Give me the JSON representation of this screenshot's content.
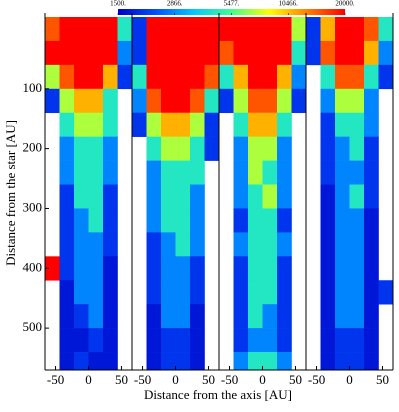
{
  "chart_data": {
    "type": "heatmap",
    "xlabel": "Distance from the axis [AU]",
    "ylabel": "Distance from the star [AU]",
    "xlim": [
      -66,
      66
    ],
    "xticks": [
      -50,
      0,
      50
    ],
    "ylim": [
      570,
      -20
    ],
    "yticks": [
      100,
      200,
      300,
      400,
      500
    ],
    "xbins": [
      -66,
      -44,
      -22,
      0,
      22,
      44,
      66
    ],
    "ybins": [
      -20,
      20,
      60,
      100,
      140,
      180,
      220,
      260,
      300,
      340,
      380,
      420,
      460,
      500,
      540,
      570
    ],
    "colorbar": {
      "scale": "log",
      "clim": [
        1500,
        20000
      ],
      "colormap": [
        "#0000c8",
        "#0050ff",
        "#00c8ff",
        "#40ff90",
        "#ffff00",
        "#ff8000",
        "#ff0000"
      ],
      "ticks": [
        {
          "value": 1500,
          "label": "1500."
        },
        {
          "value": 2866,
          "label": "2866."
        },
        {
          "value": 5477,
          "label": "5477."
        },
        {
          "value": 10466,
          "label": "10466."
        },
        {
          "value": 20000,
          "label": "20000."
        }
      ]
    },
    "panels": [
      {
        "z": [
          [
            15000,
            20000,
            20000,
            20000,
            20000,
            4500
          ],
          [
            20000,
            20000,
            20000,
            20000,
            20000,
            2800
          ],
          [
            7000,
            15000,
            20000,
            20000,
            11000,
            2000
          ],
          [
            2000,
            7000,
            11000,
            11000,
            4500,
            null
          ],
          [
            null,
            4500,
            7000,
            7000,
            4500,
            null
          ],
          [
            null,
            2800,
            4500,
            4500,
            2800,
            null
          ],
          [
            null,
            2800,
            4500,
            4500,
            2800,
            null
          ],
          [
            null,
            2000,
            4500,
            4500,
            2000,
            null
          ],
          [
            null,
            2000,
            2800,
            4500,
            2000,
            null
          ],
          [
            null,
            2000,
            2800,
            2800,
            2000,
            null
          ],
          [
            20000,
            2000,
            2800,
            2800,
            1700,
            null
          ],
          [
            null,
            1700,
            2800,
            2800,
            1700,
            null
          ],
          [
            null,
            1700,
            2000,
            2800,
            1700,
            null
          ],
          [
            null,
            1700,
            1700,
            2000,
            1700,
            null
          ],
          [
            null,
            1700,
            2000,
            1700,
            1700,
            null
          ]
        ]
      },
      {
        "z": [
          [
            2000,
            20000,
            20000,
            20000,
            20000,
            20000
          ],
          [
            2000,
            20000,
            20000,
            20000,
            20000,
            20000
          ],
          [
            4500,
            20000,
            20000,
            20000,
            20000,
            15000
          ],
          [
            2800,
            15000,
            20000,
            20000,
            15000,
            4500
          ],
          [
            2000,
            7000,
            11000,
            11000,
            7000,
            2000
          ],
          [
            null,
            4500,
            7000,
            7000,
            4500,
            2000
          ],
          [
            null,
            2800,
            4500,
            4500,
            4500,
            null
          ],
          [
            null,
            2800,
            4500,
            4500,
            2800,
            null
          ],
          [
            null,
            2800,
            4500,
            4500,
            2800,
            null
          ],
          [
            null,
            2000,
            2800,
            4500,
            2800,
            null
          ],
          [
            null,
            2000,
            2800,
            2800,
            2000,
            null
          ],
          [
            null,
            2000,
            2800,
            2800,
            2000,
            null
          ],
          [
            null,
            1700,
            2800,
            2800,
            1700,
            null
          ],
          [
            null,
            1700,
            2000,
            2000,
            1700,
            null
          ],
          [
            null,
            1700,
            2000,
            2000,
            1700,
            null
          ]
        ]
      },
      {
        "z": [
          [
            20000,
            20000,
            20000,
            20000,
            20000,
            7000
          ],
          [
            15000,
            20000,
            20000,
            20000,
            20000,
            4500
          ],
          [
            4500,
            11000,
            20000,
            20000,
            11000,
            2800
          ],
          [
            2000,
            7000,
            15000,
            15000,
            7000,
            2000
          ],
          [
            null,
            4500,
            11000,
            11000,
            4500,
            null
          ],
          [
            null,
            2800,
            7000,
            7000,
            2800,
            null
          ],
          [
            null,
            2800,
            7000,
            4500,
            2800,
            null
          ],
          [
            null,
            2800,
            4500,
            7000,
            2800,
            null
          ],
          [
            null,
            2000,
            4500,
            4500,
            2000,
            null
          ],
          [
            null,
            2800,
            4500,
            4500,
            2800,
            null
          ],
          [
            null,
            2000,
            4500,
            4500,
            2000,
            null
          ],
          [
            null,
            2000,
            4500,
            4500,
            2000,
            null
          ],
          [
            null,
            2000,
            4500,
            2800,
            2000,
            null
          ],
          [
            null,
            2000,
            2800,
            2800,
            2000,
            null
          ],
          [
            null,
            2800,
            4500,
            4500,
            2800,
            null
          ]
        ]
      },
      {
        "z": [
          [
            2000,
            11000,
            20000,
            20000,
            15000,
            4500
          ],
          [
            2000,
            15000,
            20000,
            20000,
            11000,
            2800
          ],
          [
            null,
            4500,
            15000,
            15000,
            4500,
            2000
          ],
          [
            null,
            2800,
            7000,
            7000,
            2800,
            null
          ],
          [
            null,
            2000,
            4500,
            4500,
            2800,
            null
          ],
          [
            null,
            2000,
            2800,
            4500,
            2000,
            null
          ],
          [
            null,
            2000,
            2800,
            2800,
            2000,
            null
          ],
          [
            null,
            1700,
            2800,
            4500,
            2000,
            null
          ],
          [
            null,
            1700,
            2800,
            2800,
            1700,
            null
          ],
          [
            null,
            1700,
            2800,
            2800,
            1700,
            null
          ],
          [
            null,
            1700,
            2800,
            2800,
            1700,
            null
          ],
          [
            null,
            1700,
            2800,
            2800,
            1700,
            2000
          ],
          [
            null,
            1700,
            2800,
            2800,
            1700,
            null
          ],
          [
            null,
            1700,
            2000,
            2000,
            1700,
            null
          ],
          [
            null,
            1700,
            2000,
            2000,
            1700,
            null
          ]
        ]
      }
    ]
  }
}
